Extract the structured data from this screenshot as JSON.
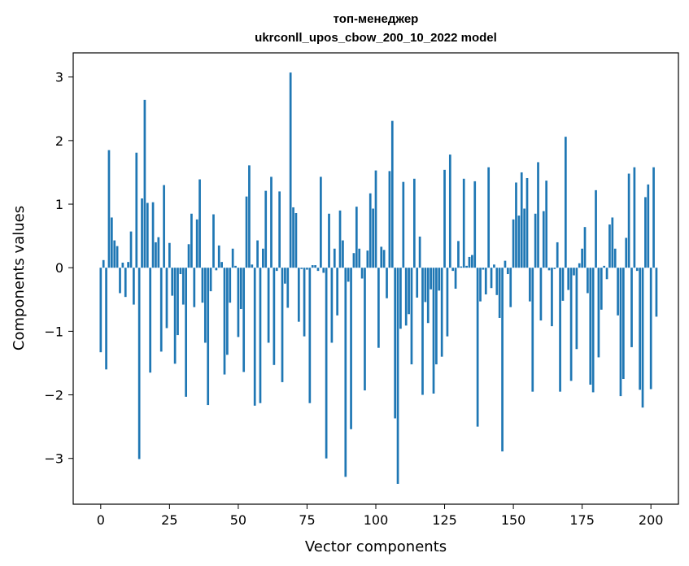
{
  "chart_data": {
    "type": "bar",
    "title": "топ-менеджер",
    "subtitle": "ukrconll_upos_cbow_200_10_2022 model",
    "xlabel": "Vector components",
    "ylabel": "Components values",
    "xlim": [
      -10,
      210
    ],
    "ylim": [
      -3.72,
      3.38
    ],
    "x_ticks": [
      0,
      25,
      50,
      75,
      100,
      125,
      150,
      175,
      200
    ],
    "y_ticks": [
      -3,
      -2,
      -1,
      0,
      1,
      2,
      3
    ],
    "grid": false,
    "legend": "none",
    "bar_color": "#1f77b4",
    "values": [
      -1.33,
      0.12,
      -1.6,
      1.85,
      0.79,
      0.43,
      0.34,
      -0.4,
      0.08,
      -0.46,
      0.09,
      0.57,
      -0.58,
      1.81,
      -3.01,
      1.09,
      2.64,
      1.02,
      -1.65,
      1.03,
      0.4,
      0.48,
      -1.32,
      1.3,
      -0.95,
      0.39,
      -0.44,
      -1.51,
      -1.06,
      -0.1,
      -0.58,
      -2.03,
      0.37,
      0.85,
      -0.62,
      0.76,
      1.39,
      -0.55,
      -1.18,
      -2.16,
      -0.37,
      0.84,
      -0.04,
      0.35,
      0.09,
      -1.68,
      -1.37,
      -0.55,
      0.3,
      0.03,
      -1.09,
      -0.65,
      -1.64,
      1.12,
      1.61,
      0.05,
      -2.17,
      0.43,
      -2.13,
      0.3,
      1.21,
      -1.18,
      1.43,
      -1.53,
      -0.05,
      1.2,
      -1.8,
      -0.25,
      -0.63,
      3.07,
      0.95,
      0.86,
      -0.85,
      -0.02,
      -1.08,
      -0.03,
      -2.13,
      0.04,
      0.04,
      -0.05,
      1.43,
      -0.08,
      -3.0,
      0.85,
      -1.18,
      0.3,
      -0.75,
      0.9,
      0.43,
      -3.29,
      -0.22,
      -2.54,
      0.23,
      0.96,
      0.3,
      -0.17,
      -1.93,
      0.27,
      1.17,
      0.93,
      1.53,
      -1.26,
      0.33,
      0.28,
      -0.48,
      1.52,
      2.31,
      -2.37,
      -3.4,
      -0.96,
      1.35,
      -0.91,
      -0.73,
      -1.52,
      1.4,
      -0.47,
      0.49,
      -2.0,
      -0.54,
      -0.87,
      -0.34,
      -1.98,
      -1.52,
      -0.36,
      -1.4,
      1.54,
      -1.08,
      1.78,
      -0.05,
      -0.33,
      0.42,
      0.02,
      1.4,
      0.03,
      0.17,
      0.2,
      1.36,
      -2.5,
      -0.53,
      -0.03,
      -0.42,
      1.58,
      -0.32,
      0.05,
      -0.43,
      -0.79,
      -2.89,
      0.11,
      -0.1,
      -0.62,
      0.76,
      1.34,
      0.82,
      1.5,
      0.93,
      1.41,
      -0.53,
      -1.95,
      0.85,
      1.66,
      -0.83,
      0.89,
      1.37,
      -0.04,
      -0.92,
      -0.02,
      0.4,
      -1.95,
      -0.52,
      2.06,
      -0.35,
      -1.78,
      -0.12,
      -1.28,
      0.07,
      0.3,
      0.64,
      -0.4,
      -1.84,
      -1.96,
      1.22,
      -1.41,
      -0.66,
      0.03,
      -0.18,
      0.68,
      0.79,
      0.3,
      -0.75,
      -2.02,
      -1.75,
      0.47,
      1.48,
      -1.25,
      1.58,
      -0.05,
      -1.92,
      -2.2,
      1.11,
      1.31,
      -1.91,
      1.58,
      -0.77
    ]
  }
}
